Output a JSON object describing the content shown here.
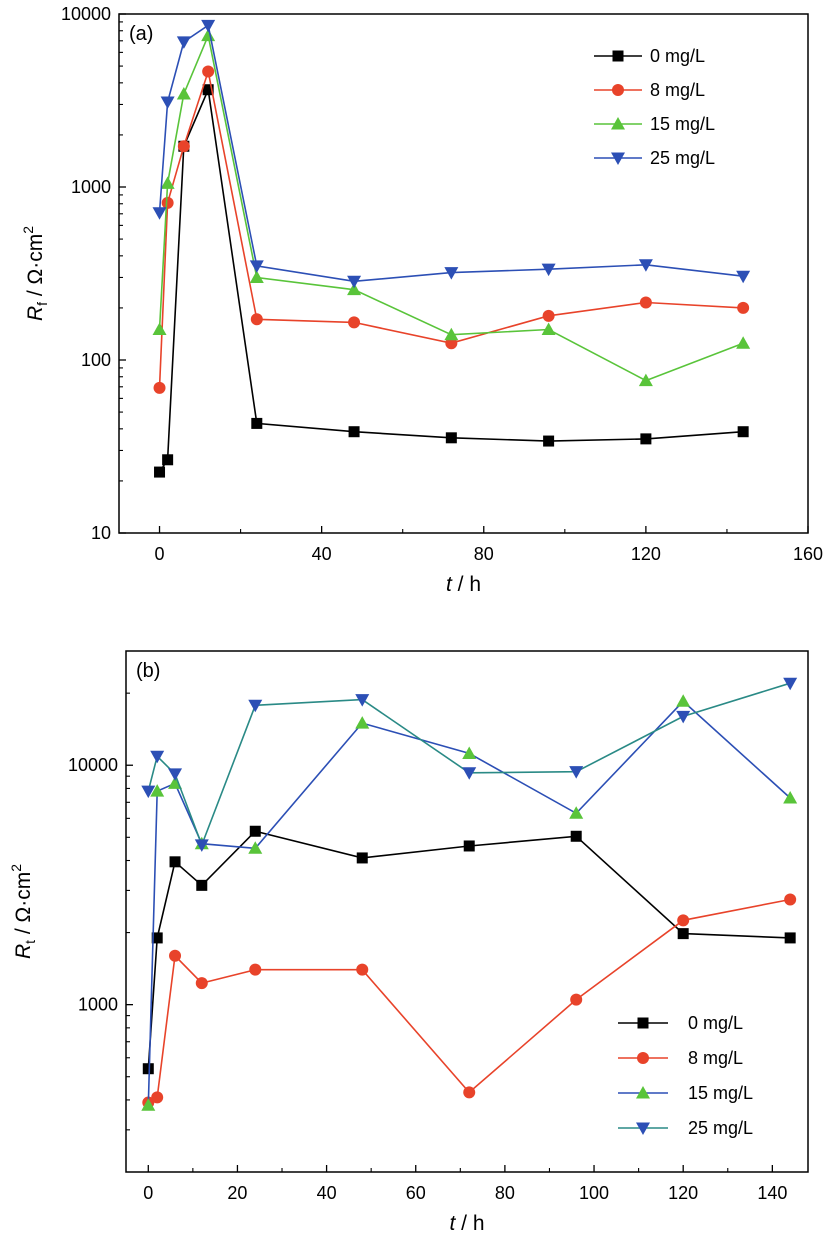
{
  "colors": {
    "0 mg/L": "#000000",
    "8 mg/L": "#e8432a",
    "15 mg/L": "#59c43a",
    "25 mg/L": "#2c4fb5"
  },
  "chart_data": [
    {
      "type": "line",
      "panel_label": "(a)",
      "xlabel_var": "t",
      "xlabel_unit": " / h",
      "ylabel_var": "R",
      "ylabel_sub": "f",
      "ylabel_unit": " / Ω·cm",
      "ylabel_sup": "2",
      "xlim": [
        -10,
        160
      ],
      "ylim": [
        10,
        10000
      ],
      "yscale": "log",
      "xticks": [
        0,
        40,
        80,
        120,
        160
      ],
      "xtick_labels": [
        "0",
        "40",
        "80",
        "120",
        "160"
      ],
      "yticks": [
        10,
        100,
        1000,
        10000
      ],
      "ytick_labels": [
        "10",
        "100",
        "1000",
        "10000"
      ],
      "legend_position": "top-right",
      "series": [
        {
          "name": "0 mg/L",
          "marker": "square",
          "line_color": "#000000",
          "x": [
            0,
            2,
            6,
            12,
            24,
            48,
            72,
            96,
            120,
            144
          ],
          "y": [
            22.5,
            26.5,
            1720,
            3650,
            43,
            38.5,
            35.5,
            34,
            35,
            38.5
          ]
        },
        {
          "name": "8 mg/L",
          "marker": "circle",
          "line_color": "#e8432a",
          "x": [
            0,
            2,
            6,
            12,
            24,
            48,
            72,
            96,
            120,
            144
          ],
          "y": [
            69,
            810,
            1720,
            4650,
            172,
            165,
            125,
            180,
            215,
            200
          ]
        },
        {
          "name": "15 mg/L",
          "marker": "triangle-up",
          "line_color": "#59c43a",
          "x": [
            0,
            2,
            6,
            12,
            24,
            48,
            72,
            96,
            120,
            144
          ],
          "y": [
            150,
            1050,
            3450,
            7500,
            300,
            255,
            140,
            150,
            76,
            125
          ]
        },
        {
          "name": "25 mg/L",
          "marker": "triangle-down",
          "line_color": "#2c4fb5",
          "x": [
            0,
            2,
            6,
            12,
            24,
            48,
            72,
            96,
            120,
            144
          ],
          "y": [
            710,
            3100,
            6900,
            8600,
            350,
            285,
            320,
            335,
            355,
            305
          ]
        }
      ]
    },
    {
      "type": "line",
      "panel_label": "(b)",
      "xlabel_var": "t",
      "xlabel_unit": " / h",
      "ylabel_var": "R",
      "ylabel_sub": "t",
      "ylabel_unit": " / Ω·cm",
      "ylabel_sup": "2",
      "xlim": [
        -5,
        148
      ],
      "ylim": [
        200,
        30000
      ],
      "yscale": "log",
      "xticks": [
        0,
        20,
        40,
        60,
        80,
        100,
        120,
        140
      ],
      "xtick_labels": [
        "0",
        "20",
        "40",
        "60",
        "80",
        "100",
        "120",
        "140"
      ],
      "yticks": [
        1000,
        10000
      ],
      "ytick_labels": [
        "1000",
        "10000"
      ],
      "legend_position": "bottom-right",
      "series": [
        {
          "name": "0 mg/L",
          "marker": "square",
          "line_color": "#000000",
          "x": [
            0,
            2,
            6,
            12,
            24,
            48,
            72,
            96,
            120,
            144
          ],
          "y": [
            540,
            1900,
            3950,
            3150,
            5300,
            4100,
            4600,
            5050,
            1980,
            1900
          ]
        },
        {
          "name": "8 mg/L",
          "marker": "circle",
          "line_color": "#e8432a",
          "x": [
            0,
            2,
            6,
            12,
            24,
            48,
            72,
            96,
            120,
            144
          ],
          "y": [
            390,
            410,
            1600,
            1230,
            1400,
            1400,
            430,
            1050,
            2250,
            2750
          ]
        },
        {
          "name": "15 mg/L",
          "marker": "triangle-up",
          "line_color": "#2c4fb5",
          "x": [
            0,
            2,
            6,
            12,
            24,
            48,
            72,
            96,
            120,
            144
          ],
          "y": [
            380,
            7800,
            8400,
            4700,
            4500,
            15000,
            11200,
            6300,
            18500,
            7300
          ]
        },
        {
          "name": "25 mg/L",
          "marker": "triangle-down",
          "line_color": "#2a8a86",
          "x": [
            0,
            2,
            6,
            12,
            24,
            48,
            72,
            96,
            120,
            144
          ],
          "y": [
            7800,
            10900,
            9200,
            4650,
            17800,
            18800,
            9300,
            9400,
            16000,
            22000
          ]
        }
      ]
    }
  ]
}
